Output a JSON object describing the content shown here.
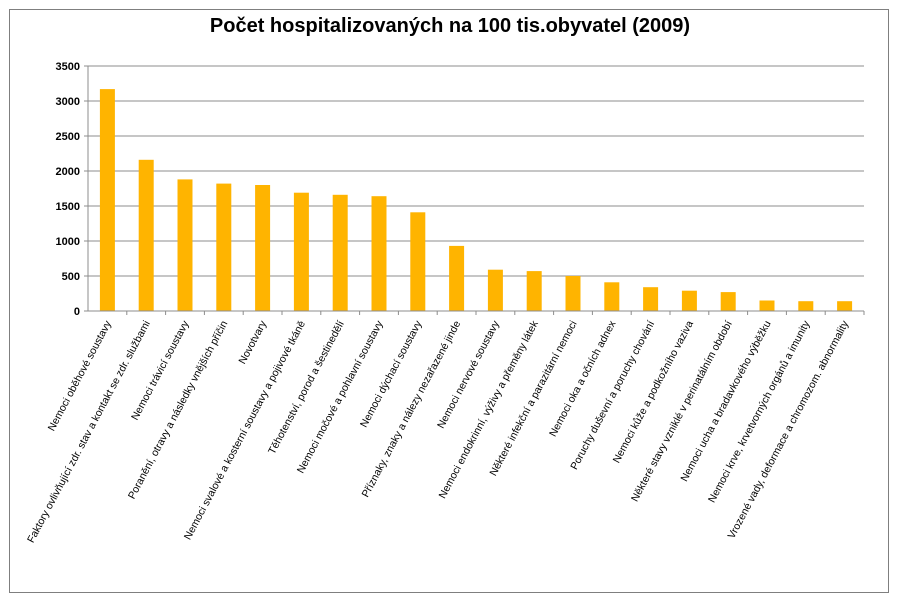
{
  "chart_data": {
    "type": "bar",
    "title": "Počet hospitalizovaných na 100 tis.obyvatel (2009)",
    "xlabel": "",
    "ylabel": "",
    "ylim": [
      0,
      3500
    ],
    "yticks": [
      0,
      500,
      1000,
      1500,
      2000,
      2500,
      3000,
      3500
    ],
    "grid": true,
    "legend": "none",
    "bar_color": "#FFB400",
    "categories": [
      "Nemoci oběhové soustavy",
      "Faktory ovlivňující zdr. stav a kontakt se zdr. službami",
      "Nemoci trávicí soustavy",
      "Poranění, otravy a následky vnějších příčin",
      "Novotvary",
      "Nemoci svalové a kosterní soustavy a pojivové tkáně",
      "Těhotenství, porod a šestinedělí",
      "Nemoci močové a pohlavní soustavy",
      "Nemoci dýchací soustavy",
      "Příznaky, znaky a nálezy nezařazené jinde",
      "Nemoci nervové soustavy",
      "Nemoci endokrinní, výživy a přeměny látek",
      "Některé infekční a parazitární nemoci",
      "Nemoci oka a očních adnex",
      "Poruchy duševní a poruchy chování",
      "Nemoci kůže a podkožního vaziva",
      "Některé stavy vzniklé v perinatálním období",
      "Nemoci ucha a bradavkového výběžku",
      "Nemoci krve, krvetvorných orgánů a imunity",
      "Vrozené vady, deformace a chromozom. abnormality"
    ],
    "values": [
      3170,
      2160,
      1880,
      1820,
      1800,
      1690,
      1660,
      1640,
      1410,
      930,
      590,
      570,
      500,
      410,
      340,
      290,
      270,
      150,
      140,
      140
    ]
  }
}
